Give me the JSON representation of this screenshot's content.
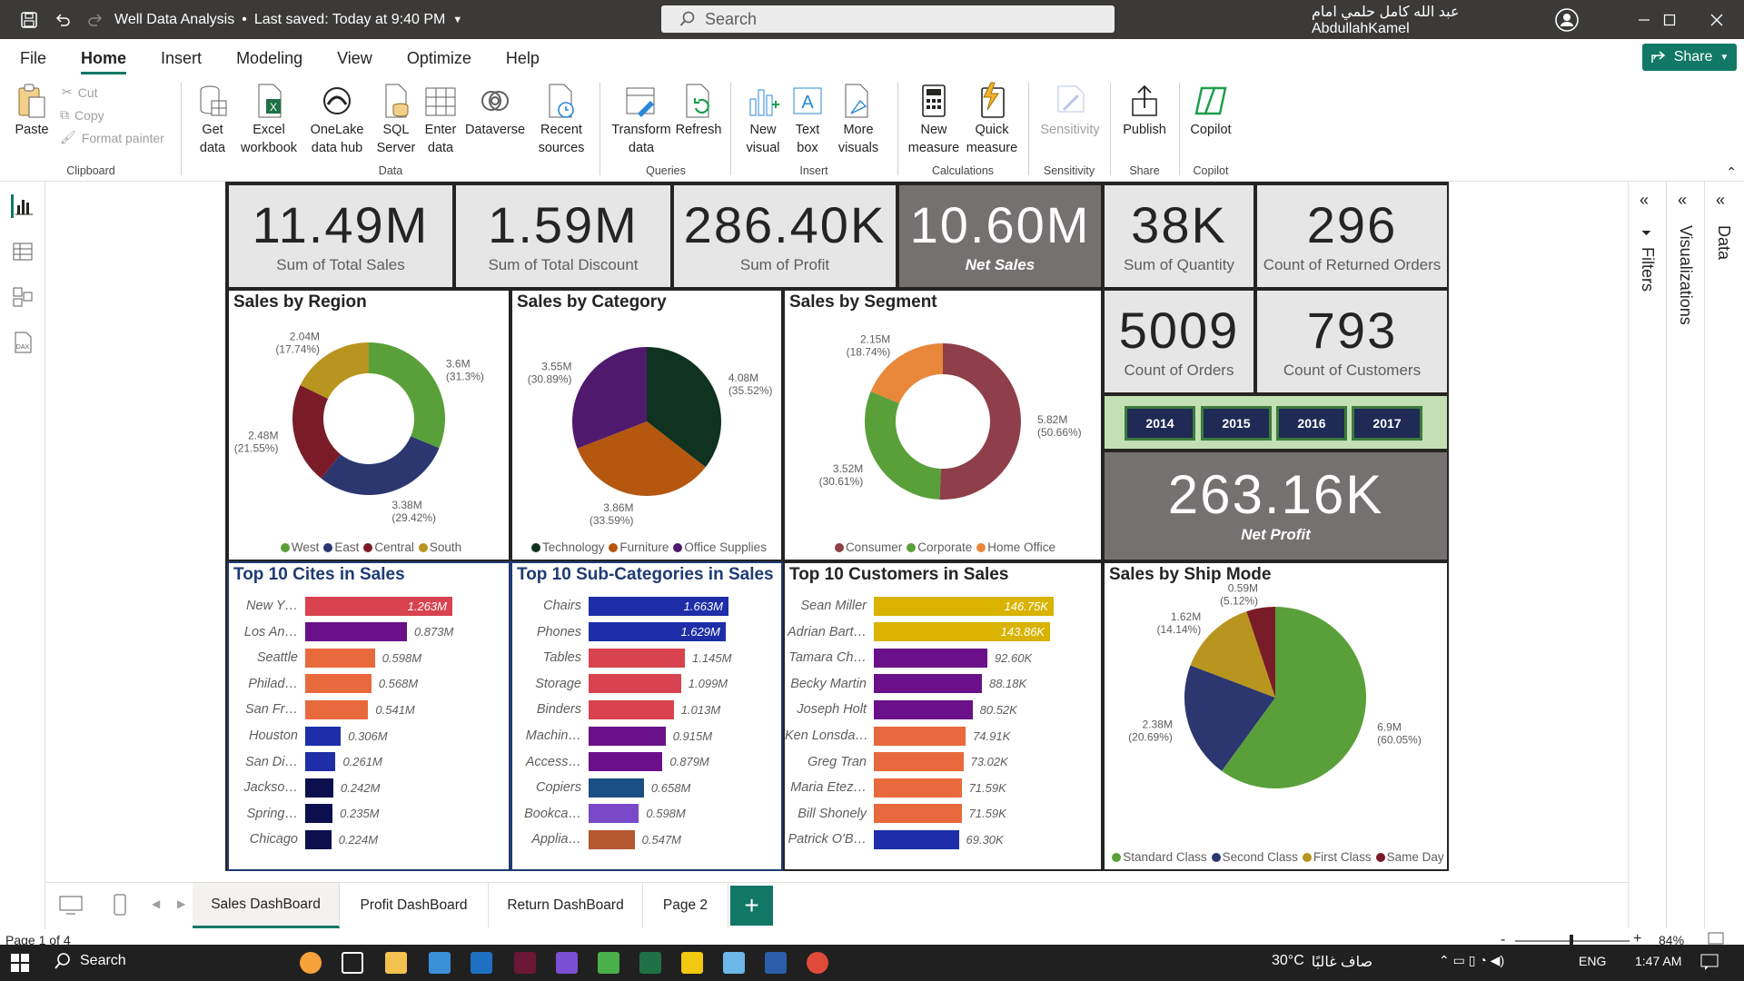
{
  "titlebar": {
    "doc_name": "Well Data Analysis",
    "saved": "Last saved: Today at 9:40 PM",
    "search_placeholder": "Search",
    "user": "عبد الله كامل حلمي امام AbdullahKamel"
  },
  "menu": {
    "items": [
      "File",
      "Home",
      "Insert",
      "Modeling",
      "View",
      "Optimize",
      "Help"
    ],
    "share": "Share"
  },
  "ribbon": {
    "clipboard": {
      "paste": "Paste",
      "cut": "Cut",
      "copy": "Copy",
      "format_painter": "Format painter",
      "group": "Clipboard"
    },
    "data": {
      "get_data": "Get data",
      "excel": "Excel workbook",
      "onelake": "OneLake data hub",
      "sql": "SQL Server",
      "enter": "Enter data",
      "dataverse": "Dataverse",
      "recent": "Recent sources",
      "group": "Data"
    },
    "queries": {
      "transform": "Transform data",
      "refresh": "Refresh",
      "group": "Queries"
    },
    "insert": {
      "new_visual": "New visual",
      "text_box": "Text box",
      "more_visuals": "More visuals",
      "group": "Insert"
    },
    "calculations": {
      "new_measure": "New measure",
      "quick_measure": "Quick measure",
      "group": "Calculations"
    },
    "sensitivity": {
      "label": "Sensitivity",
      "group": "Sensitivity"
    },
    "share": {
      "publish": "Publish",
      "group": "Share"
    },
    "copilot": {
      "label": "Copilot",
      "group": "Copilot"
    }
  },
  "kpis": [
    {
      "value": "11.49M",
      "label": "Sum of Total Sales"
    },
    {
      "value": "1.59M",
      "label": "Sum of Total Discount"
    },
    {
      "value": "286.40K",
      "label": "Sum of Profit"
    },
    {
      "value": "10.60M",
      "label": "Net Sales"
    },
    {
      "value": "38K",
      "label": "Sum of Quantity"
    },
    {
      "value": "296",
      "label": "Count of Returned Orders"
    },
    {
      "value": "5009",
      "label": "Count of Orders"
    },
    {
      "value": "793",
      "label": "Count of Customers"
    },
    {
      "value": "263.16K",
      "label": "Net Profit"
    }
  ],
  "years": [
    "2014",
    "2015",
    "2016",
    "2017"
  ],
  "colors": {
    "green": "#5aa03a",
    "navy": "#2c3770",
    "maroon": "#7a1c28",
    "gold": "#b8951e",
    "darkgreen": "#0f3320",
    "orange": "#b5570f",
    "purple": "#4f1a6e",
    "rose": "#8e3f4a",
    "accent": "#117865"
  },
  "chart_data": [
    {
      "type": "donut",
      "title": "Sales by Region",
      "categories": [
        "West",
        "East",
        "Central",
        "South"
      ],
      "values": [
        3.6,
        3.38,
        2.48,
        2.04
      ],
      "labels": [
        "3.6M (31.3%)",
        "3.38M (29.42%)",
        "2.48M (21.55%)",
        "2.04M (17.74%)"
      ],
      "colors": [
        "#5aa03a",
        "#2c3770",
        "#7a1c28",
        "#b8951e"
      ]
    },
    {
      "type": "pie",
      "title": "Sales by Category",
      "categories": [
        "Technology",
        "Furniture",
        "Office Supplies"
      ],
      "values": [
        4.08,
        3.86,
        3.55
      ],
      "labels": [
        "4.08M (35.52%)",
        "3.86M (33.59%)",
        "3.55M (30.89%)"
      ],
      "colors": [
        "#0f3320",
        "#b5570f",
        "#4f1a6e"
      ]
    },
    {
      "type": "donut",
      "title": "Sales by Segment",
      "categories": [
        "Consumer",
        "Corporate",
        "Home Office"
      ],
      "values": [
        5.82,
        3.52,
        2.15
      ],
      "labels": [
        "5.82M (50.66%)",
        "3.52M (30.61%)",
        "2.15M (18.74%)"
      ],
      "colors": [
        "#8e3f4a",
        "#5aa03a",
        "#e8873a"
      ]
    },
    {
      "type": "bar",
      "title": "Top 10 Cites in Sales",
      "categories": [
        "New Y…",
        "Los An…",
        "Seattle",
        "Philad…",
        "San Fr…",
        "Houston",
        "San Di…",
        "Jackso…",
        "Spring…",
        "Chicago"
      ],
      "values": [
        1.263,
        0.873,
        0.598,
        0.568,
        0.541,
        0.306,
        0.261,
        0.242,
        0.235,
        0.224
      ],
      "labels": [
        "1.263M",
        "0.873M",
        "0.598M",
        "0.568M",
        "0.541M",
        "0.306M",
        "0.261M",
        "0.242M",
        "0.235M",
        "0.224M"
      ],
      "colors": [
        "#d8434f",
        "#6a1189",
        "#e86a3c",
        "#e86a3c",
        "#e86a3c",
        "#1d2ea8",
        "#1d2ea8",
        "#0c0f4e",
        "#0c0f4e",
        "#0c0f4e"
      ]
    },
    {
      "type": "bar",
      "title": "Top 10 Sub-Categories in Sales",
      "categories": [
        "Chairs",
        "Phones",
        "Tables",
        "Storage",
        "Binders",
        "Machin…",
        "Access…",
        "Copiers",
        "Bookca…",
        "Applia…"
      ],
      "values": [
        1.663,
        1.629,
        1.145,
        1.099,
        1.013,
        0.915,
        0.879,
        0.658,
        0.598,
        0.547
      ],
      "labels": [
        "1.663M",
        "1.629M",
        "1.145M",
        "1.099M",
        "1.013M",
        "0.915M",
        "0.879M",
        "0.658M",
        "0.598M",
        "0.547M"
      ],
      "colors": [
        "#1d2ea8",
        "#1d2ea8",
        "#d8434f",
        "#d8434f",
        "#d8434f",
        "#6a1189",
        "#6a1189",
        "#1a4f86",
        "#7a49c9",
        "#b5572f"
      ]
    },
    {
      "type": "bar",
      "title": "Top 10 Customers in Sales",
      "categories": [
        "Sean Miller",
        "Adrian Bart…",
        "Tamara Ch…",
        "Becky Martin",
        "Joseph Holt",
        "Ken Lonsda…",
        "Greg Tran",
        "Maria Etez…",
        "Bill Shonely",
        "Patrick O'B…"
      ],
      "values": [
        146.75,
        143.86,
        92.6,
        88.18,
        80.52,
        74.91,
        73.02,
        71.59,
        71.59,
        69.3
      ],
      "labels": [
        "146.75K",
        "143.86K",
        "92.60K",
        "88.18K",
        "80.52K",
        "74.91K",
        "73.02K",
        "71.59K",
        "71.59K",
        "69.30K"
      ],
      "colors": [
        "#d9b300",
        "#d9b300",
        "#6a1189",
        "#6a1189",
        "#6a1189",
        "#e86a3c",
        "#e86a3c",
        "#e86a3c",
        "#e86a3c",
        "#1d2ea8"
      ]
    },
    {
      "type": "pie",
      "title": "Sales by Ship Mode",
      "categories": [
        "Standard Class",
        "Second Class",
        "First Class",
        "Same Day"
      ],
      "values": [
        6.9,
        2.38,
        1.62,
        0.59
      ],
      "labels": [
        "6.9M (60.05%)",
        "2.38M (20.69%)",
        "1.62M (14.14%)",
        "0.59M (5.12%)"
      ],
      "colors": [
        "#5aa03a",
        "#2c3770",
        "#b8951e",
        "#7a1c28"
      ]
    }
  ],
  "panes": {
    "filters": "Filters",
    "visualizations": "Visualizations",
    "data": "Data"
  },
  "tabs": [
    "Sales DashBoard",
    "Profit DashBoard",
    "Return DashBoard",
    "Page 2"
  ],
  "status": {
    "page": "Page 1 of 4",
    "zoom": "84%"
  },
  "taskbar": {
    "search": "Search",
    "weather": "30°C",
    "weather_desc": "صاف غالبًا",
    "lang": "ENG",
    "time": "1:47 AM"
  }
}
